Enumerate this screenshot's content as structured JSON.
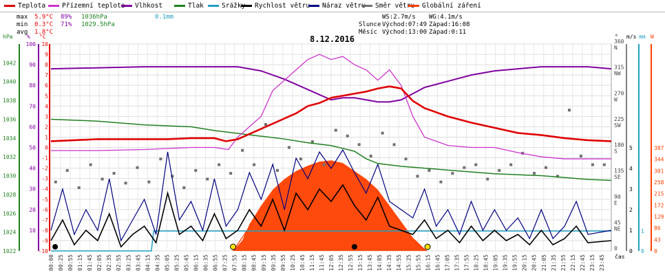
{
  "legend": [
    {
      "label": "Teplota",
      "color": "#e00000"
    },
    {
      "label": "Přízemní teplota",
      "color": "#cc33cc"
    },
    {
      "label": "Vlhkost",
      "color": "#8000a0"
    },
    {
      "label": "Tlak",
      "color": "#208020"
    },
    {
      "label": "Srážky",
      "color": "#20a0c0"
    },
    {
      "label": "Rychlost větru",
      "color": "#000000"
    },
    {
      "label": "Náraz větru",
      "color": "#000080"
    },
    {
      "label": "Směr větru",
      "color": "#707070"
    },
    {
      "label": "Globální záření",
      "color": "#ff4000"
    }
  ],
  "stats": {
    "max_label": "max",
    "min_label": "min",
    "avg_label": "avg",
    "max_temp": "5.9°C",
    "max_hum": "89%",
    "max_press": "1036hPa",
    "max_rain": "0.1mm",
    "min_temp": "0.3°C",
    "min_hum": "71%",
    "min_press": "1029.5hPa",
    "avg_temp": "1.8°C"
  },
  "wind_info": {
    "ws": "WS:2.7m/s",
    "wg": "WG:4.1m/s"
  },
  "sun": {
    "label": "Slunce",
    "rise": "Východ:07:49",
    "set": "Západ:16:08"
  },
  "moon": {
    "label": "Měsíc",
    "rise": "Východ:13:00",
    "set": "Západ:0:11"
  },
  "axis_units": {
    "hpa": "hPa",
    "pct": "%",
    "degc": "°C",
    "deg": "°",
    "ms": "m/s",
    "mm": "mm",
    "w": "W",
    "time": "čas"
  },
  "chart_data": {
    "type": "line",
    "title": "8.12.2016",
    "colors": {
      "temp": "#e00000",
      "ground": "#cc33cc",
      "hum": "#8000a0",
      "press": "#208020",
      "rain": "#20a0c0",
      "ws": "#000000",
      "wg": "#000080",
      "wd": "#707070",
      "rad": "#ff4000"
    },
    "x_ticks": [
      "00:00",
      "00:25",
      "00:55",
      "01:15",
      "01:45",
      "02:05",
      "02:35",
      "02:55",
      "03:25",
      "03:45",
      "04:15",
      "04:35",
      "05:05",
      "05:25",
      "05:45",
      "06:15",
      "06:35",
      "06:55",
      "07:25",
      "07:55",
      "08:15",
      "08:45",
      "09:15",
      "09:35",
      "09:55",
      "10:25",
      "10:45",
      "11:15",
      "11:45",
      "12:05",
      "12:35",
      "12:55",
      "13:15",
      "13:45",
      "14:05",
      "14:35",
      "14:55",
      "15:25",
      "15:55",
      "16:15",
      "16:45",
      "17:05",
      "17:35",
      "17:55",
      "18:25",
      "18:45",
      "19:05",
      "19:35",
      "19:55",
      "20:15",
      "20:45",
      "21:05",
      "21:35",
      "21:55",
      "22:15",
      "22:45",
      "23:15",
      "23:45"
    ],
    "temp_axis": {
      "min": -10,
      "max": 10,
      "ticks": [
        10,
        9,
        8,
        7,
        6,
        5,
        4,
        3,
        2,
        1,
        0,
        -1,
        -2,
        -3,
        -4,
        -5,
        -6,
        -7,
        -8,
        -9,
        -10
      ]
    },
    "hum_axis": {
      "min": 0,
      "max": 100,
      "ticks": [
        100,
        90,
        80,
        70,
        60,
        50,
        40,
        30,
        20,
        10
      ]
    },
    "press_axis": {
      "min": 1022,
      "max": 1044,
      "ticks": [
        1042,
        1040,
        1038,
        1036,
        1034,
        1032,
        1030,
        1028,
        1026,
        1024,
        1022
      ]
    },
    "dir_axis": {
      "ticks": [
        {
          "v": 360,
          "l": "N"
        },
        {
          "v": 315,
          "l": "NW"
        },
        {
          "v": 270,
          "l": "W"
        },
        {
          "v": 225,
          "l": "SW"
        },
        {
          "v": 180,
          "l": "S"
        },
        {
          "v": 135,
          "l": "SE"
        },
        {
          "v": 90,
          "l": "E"
        },
        {
          "v": 45,
          "l": "NE"
        },
        {
          "v": 0,
          "l": ""
        }
      ]
    },
    "speed_axis": {
      "ticks": [
        5,
        4,
        3,
        2,
        1,
        0
      ]
    },
    "rain_axis": {
      "ticks": [
        1,
        0
      ]
    },
    "rad_axis": {
      "ticks": [
        387,
        344,
        301,
        258,
        215,
        172,
        129,
        86,
        43,
        0
      ]
    },
    "temperature": [
      [
        0,
        0.6
      ],
      [
        1,
        0.7
      ],
      [
        2,
        0.8
      ],
      [
        3,
        0.8
      ],
      [
        4,
        0.8
      ],
      [
        5,
        0.8
      ],
      [
        6,
        0.9
      ],
      [
        7,
        0.9
      ],
      [
        7.5,
        0.6
      ],
      [
        8,
        0.8
      ],
      [
        8.5,
        1.3
      ],
      [
        9,
        1.8
      ],
      [
        9.5,
        2.3
      ],
      [
        10,
        2.8
      ],
      [
        10.5,
        3.3
      ],
      [
        11,
        4.0
      ],
      [
        11.5,
        4.3
      ],
      [
        12,
        4.8
      ],
      [
        12.5,
        5.0
      ],
      [
        13,
        5.2
      ],
      [
        13.5,
        5.4
      ],
      [
        14,
        5.7
      ],
      [
        14.5,
        5.9
      ],
      [
        15,
        5.7
      ],
      [
        15.5,
        4.5
      ],
      [
        16,
        3.8
      ],
      [
        17,
        3.0
      ],
      [
        18,
        2.4
      ],
      [
        19,
        1.9
      ],
      [
        20,
        1.4
      ],
      [
        21,
        1.2
      ],
      [
        22,
        0.9
      ],
      [
        23,
        0.7
      ],
      [
        24,
        0.6
      ]
    ],
    "ground_temp": [
      [
        0,
        -0.3
      ],
      [
        2,
        -0.3
      ],
      [
        4,
        -0.2
      ],
      [
        6,
        0.0
      ],
      [
        7,
        0.0
      ],
      [
        7.6,
        -0.2
      ],
      [
        8,
        1.0
      ],
      [
        8.5,
        2.0
      ],
      [
        9,
        3.0
      ],
      [
        9.5,
        5.5
      ],
      [
        10,
        6.5
      ],
      [
        10.5,
        7.5
      ],
      [
        11,
        8.5
      ],
      [
        11.5,
        9.0
      ],
      [
        12,
        8.5
      ],
      [
        12.5,
        8.8
      ],
      [
        13,
        8.0
      ],
      [
        13.5,
        7.5
      ],
      [
        14,
        6.5
      ],
      [
        14.5,
        7.5
      ],
      [
        15,
        6.0
      ],
      [
        15.5,
        3.0
      ],
      [
        16,
        1.0
      ],
      [
        17,
        0.2
      ],
      [
        18,
        0.0
      ],
      [
        19,
        0.0
      ],
      [
        20,
        -0.5
      ],
      [
        21,
        -0.9
      ],
      [
        22,
        -1.1
      ],
      [
        23,
        -1.1
      ],
      [
        24,
        -1.1
      ]
    ],
    "humidity": [
      [
        0,
        88
      ],
      [
        4,
        89
      ],
      [
        6,
        89
      ],
      [
        7,
        89
      ],
      [
        8,
        89
      ],
      [
        9,
        87
      ],
      [
        10,
        83
      ],
      [
        11,
        78
      ],
      [
        12,
        73
      ],
      [
        12.5,
        74
      ],
      [
        13,
        74
      ],
      [
        13.5,
        73
      ],
      [
        14,
        72
      ],
      [
        14.5,
        72
      ],
      [
        15,
        73
      ],
      [
        15.5,
        76
      ],
      [
        16,
        79
      ],
      [
        17,
        82
      ],
      [
        18,
        85
      ],
      [
        19,
        87
      ],
      [
        20,
        88
      ],
      [
        21,
        89
      ],
      [
        22,
        89
      ],
      [
        23,
        89
      ],
      [
        24,
        88
      ]
    ],
    "pressure": [
      [
        0,
        1036
      ],
      [
        2,
        1035.8
      ],
      [
        4,
        1035.4
      ],
      [
        6,
        1035.2
      ],
      [
        7,
        1034.8
      ],
      [
        8,
        1034.5
      ],
      [
        9,
        1034.2
      ],
      [
        10,
        1033.9
      ],
      [
        11,
        1033.5
      ],
      [
        12,
        1033.2
      ],
      [
        13,
        1032.6
      ],
      [
        13.5,
        1031.8
      ],
      [
        14,
        1031.3
      ],
      [
        15,
        1031.0
      ],
      [
        16,
        1030.8
      ],
      [
        17,
        1030.6
      ],
      [
        18,
        1030.4
      ],
      [
        19,
        1030.2
      ],
      [
        20,
        1030.1
      ],
      [
        21,
        1030.0
      ],
      [
        22,
        1029.8
      ],
      [
        23,
        1029.6
      ],
      [
        24,
        1029.5
      ]
    ],
    "rain": [
      [
        0,
        0
      ],
      [
        4.3,
        0
      ],
      [
        4.4,
        1
      ],
      [
        24,
        1
      ]
    ],
    "radiation": [
      [
        7.8,
        0
      ],
      [
        8.2,
        40
      ],
      [
        8.5,
        100
      ],
      [
        9,
        170
      ],
      [
        9.5,
        230
      ],
      [
        10,
        270
      ],
      [
        10.5,
        300
      ],
      [
        11,
        320
      ],
      [
        11.5,
        335
      ],
      [
        12,
        340
      ],
      [
        12.5,
        330
      ],
      [
        13,
        300
      ],
      [
        13.5,
        270
      ],
      [
        14,
        230
      ],
      [
        14.5,
        170
      ],
      [
        15,
        110
      ],
      [
        15.5,
        50
      ],
      [
        16.1,
        0
      ]
    ],
    "radiation_clear": [
      [
        7.8,
        0
      ],
      [
        8.5,
        90
      ],
      [
        9,
        150
      ],
      [
        9.5,
        200
      ],
      [
        10,
        250
      ],
      [
        10.5,
        290
      ],
      [
        11,
        315
      ],
      [
        11.5,
        330
      ],
      [
        12,
        330
      ],
      [
        12.5,
        320
      ],
      [
        13,
        295
      ],
      [
        13.5,
        260
      ],
      [
        14,
        215
      ],
      [
        14.5,
        160
      ],
      [
        15,
        100
      ],
      [
        15.5,
        40
      ],
      [
        16.1,
        0
      ]
    ],
    "wind_speed": [
      [
        0,
        0.5
      ],
      [
        0.5,
        1.5
      ],
      [
        1,
        0.3
      ],
      [
        1.5,
        1.0
      ],
      [
        2,
        0.5
      ],
      [
        2.5,
        1.8
      ],
      [
        3,
        0.2
      ],
      [
        3.5,
        0.8
      ],
      [
        4,
        1.2
      ],
      [
        4.5,
        0.4
      ],
      [
        5,
        2.8
      ],
      [
        5.5,
        0.8
      ],
      [
        6,
        1.2
      ],
      [
        6.5,
        0.5
      ],
      [
        7,
        1.8
      ],
      [
        7.5,
        0.6
      ],
      [
        8,
        1.0
      ],
      [
        8.5,
        2.0
      ],
      [
        9,
        1.2
      ],
      [
        9.5,
        2.5
      ],
      [
        10,
        1.0
      ],
      [
        10.5,
        2.8
      ],
      [
        11,
        2.0
      ],
      [
        11.5,
        3.0
      ],
      [
        12,
        2.4
      ],
      [
        12.5,
        3.2
      ],
      [
        13,
        2.2
      ],
      [
        13.5,
        1.5
      ],
      [
        14,
        2.6
      ],
      [
        14.5,
        1.2
      ],
      [
        15,
        1.0
      ],
      [
        15.5,
        0.8
      ],
      [
        16,
        1.5
      ],
      [
        16.5,
        0.6
      ],
      [
        17,
        1.0
      ],
      [
        17.5,
        0.4
      ],
      [
        18,
        1.2
      ],
      [
        18.5,
        0.5
      ],
      [
        19,
        1.0
      ],
      [
        19.5,
        0.5
      ],
      [
        20,
        0.8
      ],
      [
        20.5,
        0.3
      ],
      [
        21,
        1.0
      ],
      [
        21.5,
        0.3
      ],
      [
        22,
        0.6
      ],
      [
        22.5,
        1.2
      ],
      [
        23,
        0.4
      ],
      [
        24,
        0.5
      ]
    ],
    "wind_gust": [
      [
        0,
        1.0
      ],
      [
        0.5,
        3.0
      ],
      [
        1,
        0.8
      ],
      [
        1.5,
        2.0
      ],
      [
        2,
        1.0
      ],
      [
        2.5,
        3.5
      ],
      [
        3,
        0.5
      ],
      [
        3.5,
        1.5
      ],
      [
        4,
        2.5
      ],
      [
        4.5,
        0.8
      ],
      [
        5,
        4.8
      ],
      [
        5.5,
        1.5
      ],
      [
        6,
        2.4
      ],
      [
        6.5,
        1.0
      ],
      [
        7,
        3.5
      ],
      [
        7.5,
        1.2
      ],
      [
        8,
        2.0
      ],
      [
        8.5,
        3.8
      ],
      [
        9,
        2.5
      ],
      [
        9.5,
        4.2
      ],
      [
        10,
        2.0
      ],
      [
        10.5,
        4.5
      ],
      [
        11,
        3.5
      ],
      [
        11.5,
        4.8
      ],
      [
        12,
        4.0
      ],
      [
        12.5,
        4.9
      ],
      [
        13,
        3.8
      ],
      [
        13.5,
        2.8
      ],
      [
        14,
        4.2
      ],
      [
        14.5,
        2.4
      ],
      [
        15,
        2.0
      ],
      [
        15.5,
        1.6
      ],
      [
        16,
        3.0
      ],
      [
        16.5,
        1.2
      ],
      [
        17,
        2.0
      ],
      [
        17.5,
        0.8
      ],
      [
        18,
        2.4
      ],
      [
        18.5,
        1.0
      ],
      [
        19,
        2.0
      ],
      [
        19.5,
        1.0
      ],
      [
        20,
        1.6
      ],
      [
        20.5,
        0.6
      ],
      [
        21,
        2.0
      ],
      [
        21.5,
        0.6
      ],
      [
        22,
        1.2
      ],
      [
        22.5,
        2.4
      ],
      [
        23,
        0.8
      ],
      [
        24,
        1.0
      ]
    ],
    "wind_dir": [
      [
        0.2,
        120
      ],
      [
        0.7,
        140
      ],
      [
        1.2,
        110
      ],
      [
        1.7,
        150
      ],
      [
        2.2,
        125
      ],
      [
        2.7,
        135
      ],
      [
        3.2,
        118
      ],
      [
        3.7,
        145
      ],
      [
        4.2,
        120
      ],
      [
        4.7,
        160
      ],
      [
        5.2,
        130
      ],
      [
        5.7,
        110
      ],
      [
        6.2,
        140
      ],
      [
        6.7,
        125
      ],
      [
        7.2,
        150
      ],
      [
        7.7,
        135
      ],
      [
        8.2,
        175
      ],
      [
        8.7,
        150
      ],
      [
        9.2,
        220
      ],
      [
        9.7,
        140
      ],
      [
        10.2,
        180
      ],
      [
        10.7,
        160
      ],
      [
        11.2,
        190
      ],
      [
        11.7,
        150
      ],
      [
        12.2,
        210
      ],
      [
        12.7,
        200
      ],
      [
        13.2,
        185
      ],
      [
        13.7,
        165
      ],
      [
        14.2,
        205
      ],
      [
        14.7,
        185
      ],
      [
        15.2,
        160
      ],
      [
        15.7,
        130
      ],
      [
        16.2,
        140
      ],
      [
        16.7,
        120
      ],
      [
        17.2,
        135
      ],
      [
        17.7,
        145
      ],
      [
        18.2,
        150
      ],
      [
        18.7,
        125
      ],
      [
        19.2,
        140
      ],
      [
        19.7,
        150
      ],
      [
        20.2,
        170
      ],
      [
        20.7,
        135
      ],
      [
        21.2,
        145
      ],
      [
        21.7,
        130
      ],
      [
        22.2,
        245
      ],
      [
        22.7,
        165
      ],
      [
        23.2,
        150
      ],
      [
        23.7,
        150
      ]
    ],
    "markers": {
      "sunrise": 7.8,
      "sunset": 16.13,
      "moonrise": 13.0,
      "moonset": 0.18
    }
  }
}
